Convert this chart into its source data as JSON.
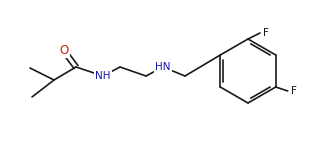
{
  "background": "#ffffff",
  "bond_color": "#1a1a1a",
  "lw": 1.2,
  "fs": 7.5,
  "figsize": [
    3.1,
    1.55
  ],
  "dpi": 100,
  "xlim": [
    0,
    310
  ],
  "ylim": [
    0,
    155
  ]
}
